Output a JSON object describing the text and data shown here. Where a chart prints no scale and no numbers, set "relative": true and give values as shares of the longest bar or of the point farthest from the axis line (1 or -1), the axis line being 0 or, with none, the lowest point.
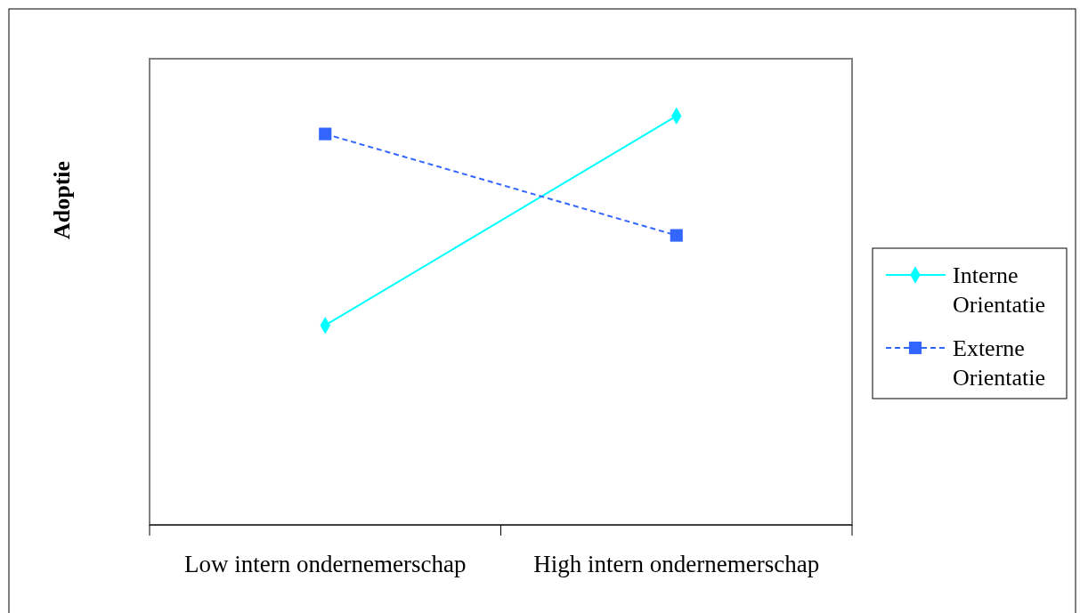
{
  "chart_data": {
    "type": "line",
    "ylabel": "Adoptie",
    "relative": true,
    "categories": [
      "Low intern ondernemerschap",
      "High intern ondernemerschap"
    ],
    "series": [
      {
        "name": "Interne Orientatie",
        "color": "#00ffff",
        "values": [
          0.488,
          1
        ],
        "marker": "diamond",
        "line_style": "solid"
      },
      {
        "name": "Externe Orientatie",
        "color": "#3366ff",
        "values": [
          0.956,
          0.708
        ],
        "marker": "square",
        "line_style": "dashed"
      }
    ],
    "grid": false,
    "legend": "right"
  }
}
